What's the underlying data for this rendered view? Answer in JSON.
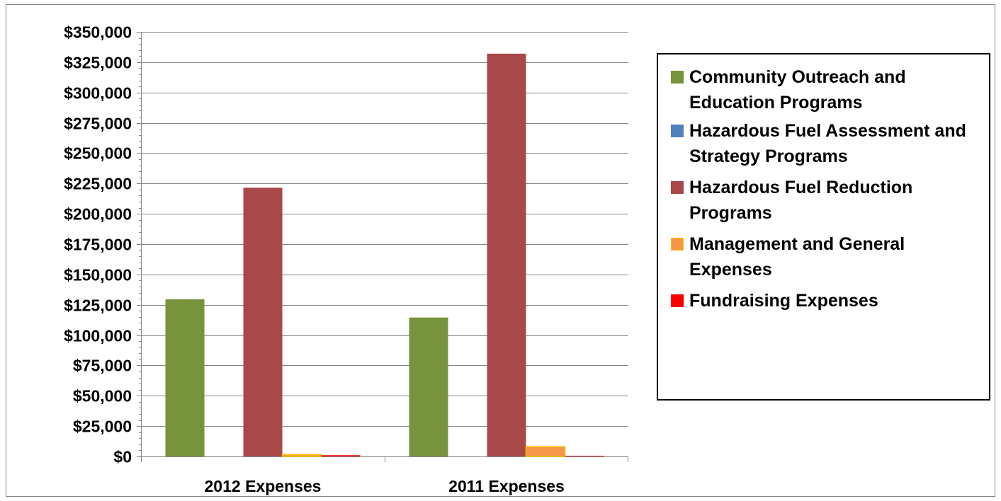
{
  "chart_data": {
    "type": "bar",
    "categories": [
      "2012 Expenses",
      "2011 Expenses"
    ],
    "series": [
      {
        "name": "Community Outreach and Education Programs",
        "color": "#77933c",
        "values": [
          129500,
          114500
        ]
      },
      {
        "name": "Hazardous Fuel Assessment and Strategy Programs",
        "color": "#4f81bd",
        "values": [
          0,
          0
        ]
      },
      {
        "name": "Hazardous Fuel Reduction Programs",
        "color": "#a94848",
        "values": [
          221500,
          332000
        ]
      },
      {
        "name": "Management and General Expenses",
        "color": "#f79646",
        "values": [
          1500,
          8000
        ]
      },
      {
        "name": "Fundraising Expenses",
        "color": "#ff0000",
        "values": [
          1000,
          500
        ]
      }
    ],
    "ylim": [
      0,
      350000
    ],
    "ytick_step": 25000,
    "ytick_labels": [
      "$0",
      "$25,000",
      "$50,000",
      "$75,000",
      "$100,000",
      "$125,000",
      "$150,000",
      "$175,000",
      "$200,000",
      "$225,000",
      "$250,000",
      "$275,000",
      "$300,000",
      "$325,000",
      "$350,000"
    ],
    "grid": true,
    "legend_position": "right",
    "title": "",
    "xlabel": "",
    "ylabel": ""
  }
}
